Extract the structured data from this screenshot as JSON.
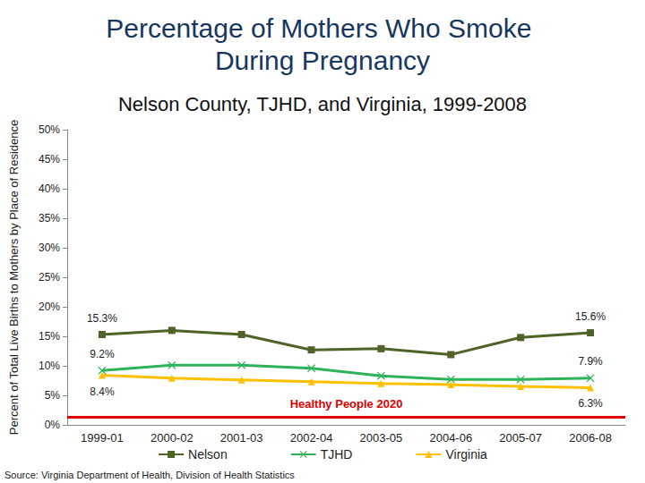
{
  "chart_data": {
    "type": "line",
    "title": "Percentage of Mothers Who Smoke During Pregnancy",
    "subtitle": "Nelson County, TJHD, and Virginia, 1999-2008",
    "y_label": "Percent of Total Live Births to Mothers by Place of Residence",
    "source": "Source: Virginia Department of Health, Division of Health Statistics",
    "categories": [
      "1999-01",
      "2000-02",
      "2001-03",
      "2002-04",
      "2003-05",
      "2004-06",
      "2005-07",
      "2006-08"
    ],
    "series": [
      {
        "name": "Nelson",
        "color": "#4f6228",
        "marker": "square",
        "values": [
          15.3,
          16.0,
          15.3,
          12.7,
          12.9,
          11.9,
          14.8,
          15.6
        ],
        "value_labels": [
          "15.3%",
          null,
          null,
          null,
          null,
          null,
          null,
          "15.6%"
        ]
      },
      {
        "name": "TJHD",
        "color": "#2fb35a",
        "marker": "x",
        "values": [
          9.2,
          10.1,
          10.1,
          9.6,
          8.3,
          7.7,
          7.7,
          7.9
        ],
        "value_labels": [
          "9.2%",
          null,
          null,
          null,
          null,
          null,
          null,
          "7.9%"
        ]
      },
      {
        "name": "Virginia",
        "color": "#ffc000",
        "marker": "triangle",
        "values": [
          8.4,
          7.9,
          7.6,
          7.3,
          7.0,
          6.8,
          6.5,
          6.3
        ],
        "value_labels": [
          "8.4%",
          null,
          null,
          null,
          null,
          null,
          null,
          "6.3%"
        ]
      }
    ],
    "reference_lines": [
      {
        "value": 1.4,
        "label": "Healthy People 2020",
        "color": "#e00000"
      }
    ],
    "data_labels": true,
    "ylim": [
      0,
      50
    ],
    "yticks": [
      {
        "value": 0,
        "label": "0%"
      },
      {
        "value": 5,
        "label": "5%"
      },
      {
        "value": 10,
        "label": "10%"
      },
      {
        "value": 15,
        "label": "15%"
      },
      {
        "value": 20,
        "label": "20%"
      },
      {
        "value": 25,
        "label": "25%"
      },
      {
        "value": 30,
        "label": "30%"
      },
      {
        "value": 35,
        "label": "35%"
      },
      {
        "value": 40,
        "label": "40%"
      },
      {
        "value": 45,
        "label": "45%"
      },
      {
        "value": 50,
        "label": "50%"
      }
    ],
    "grid": false,
    "legend": "bottom"
  }
}
